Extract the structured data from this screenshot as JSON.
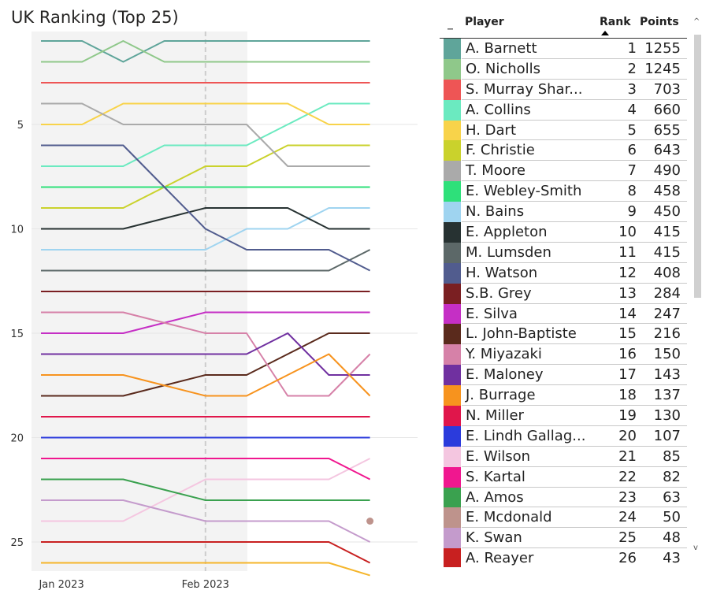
{
  "title": "UK Ranking (Top 25)",
  "chart_data": {
    "type": "line",
    "x": [
      "t1",
      "t2",
      "t3",
      "t4",
      "t5",
      "t6",
      "t7",
      "t8",
      "t9"
    ],
    "x_tick_labels": [
      {
        "label": "Jan 2023",
        "at": 0.5
      },
      {
        "label": "Feb 2023",
        "at": 4
      }
    ],
    "y_ticks": [
      5,
      10,
      15,
      20,
      25
    ],
    "ylim": [
      0.2,
      26.5
    ],
    "y_inverted": true,
    "divider_at": 4,
    "series": [
      {
        "name": "A. Barnett",
        "color": "#5fa59a",
        "values": [
          1,
          1,
          2,
          1,
          1,
          1,
          1,
          1,
          1
        ]
      },
      {
        "name": "O. Nicholls",
        "color": "#8fc88a",
        "values": [
          2,
          2,
          1,
          2,
          2,
          2,
          2,
          2,
          2
        ]
      },
      {
        "name": "S. Murray Sharan",
        "color": "#ee5555",
        "values": [
          3,
          3,
          3,
          3,
          3,
          3,
          3,
          3,
          3
        ]
      },
      {
        "name": "A. Collins",
        "color": "#6beac0",
        "values": [
          7,
          7,
          7,
          6,
          6,
          6,
          5,
          4,
          4
        ]
      },
      {
        "name": "H. Dart",
        "color": "#f8d34a",
        "values": [
          5,
          5,
          4,
          4,
          4,
          4,
          4,
          5,
          5
        ]
      },
      {
        "name": "F. Christie",
        "color": "#cad22c",
        "values": [
          9,
          9,
          9,
          8,
          7,
          7,
          6,
          6,
          6
        ]
      },
      {
        "name": "T. Moore",
        "color": "#aaaaaa",
        "values": [
          4,
          4,
          5,
          5,
          5,
          5,
          7,
          7,
          7
        ]
      },
      {
        "name": "E. Webley-Smith",
        "color": "#2ee07a",
        "values": [
          8,
          8,
          8,
          8,
          8,
          8,
          8,
          8,
          8
        ]
      },
      {
        "name": "N. Bains",
        "color": "#9fd4f0",
        "values": [
          11,
          11,
          11,
          11,
          11,
          10,
          10,
          9,
          9
        ]
      },
      {
        "name": "E. Appleton",
        "color": "#273232",
        "values": [
          10,
          10,
          10,
          9.5,
          9,
          9,
          9,
          10,
          10
        ]
      },
      {
        "name": "M. Lumsden",
        "color": "#5c6868",
        "values": [
          12,
          12,
          12,
          12,
          12,
          12,
          12,
          12,
          11
        ]
      },
      {
        "name": "H. Watson",
        "color": "#515c8e",
        "values": [
          6,
          6,
          6,
          8,
          10,
          11,
          11,
          11,
          12
        ]
      },
      {
        "name": "S.B. Grey",
        "color": "#7a1f22",
        "values": [
          13,
          13,
          13,
          13,
          13,
          13,
          13,
          13,
          13
        ]
      },
      {
        "name": "E. Silva",
        "color": "#c52fc5",
        "values": [
          15,
          15,
          15,
          14.5,
          14,
          14,
          14,
          14,
          14
        ]
      },
      {
        "name": "L. John-Baptiste",
        "color": "#5a2a1c",
        "values": [
          18,
          18,
          18,
          17.5,
          17,
          17,
          16,
          15,
          15
        ]
      },
      {
        "name": "Y. Miyazaki",
        "color": "#d681a8",
        "values": [
          14,
          14,
          14,
          14.5,
          15,
          15,
          18,
          18,
          16
        ]
      },
      {
        "name": "E. Maloney",
        "color": "#7030a0",
        "values": [
          16,
          16,
          16,
          16,
          16,
          16,
          15,
          17,
          17
        ]
      },
      {
        "name": "J. Burrage",
        "color": "#f7931e",
        "values": [
          17,
          17,
          17,
          17.5,
          18,
          18,
          17,
          16,
          18
        ]
      },
      {
        "name": "N. Miller",
        "color": "#e0164b",
        "values": [
          19,
          19,
          19,
          19,
          19,
          19,
          19,
          19,
          19
        ]
      },
      {
        "name": "E. Lindh Gallagher",
        "color": "#2b3bdc",
        "values": [
          20,
          20,
          20,
          20,
          20,
          20,
          20,
          20,
          20
        ]
      },
      {
        "name": "E. Wilson",
        "color": "#f4c6e0",
        "values": [
          24,
          24,
          24,
          23,
          22,
          22,
          22,
          22,
          21
        ]
      },
      {
        "name": "S. Kartal",
        "color": "#f0178f",
        "values": [
          21,
          21,
          21,
          21,
          21,
          21,
          21,
          21,
          22
        ]
      },
      {
        "name": "A. Amos",
        "color": "#3aa14f",
        "values": [
          22,
          22,
          22,
          22.5,
          23,
          23,
          23,
          23,
          23
        ]
      },
      {
        "name": "E. Mcdonald",
        "color": "#be938c",
        "values": [
          null,
          null,
          null,
          null,
          null,
          null,
          null,
          null,
          24
        ]
      },
      {
        "name": "K. Swan",
        "color": "#c49bcc",
        "values": [
          23,
          23,
          23,
          23.5,
          24,
          24,
          24,
          24,
          25
        ]
      },
      {
        "name": "A. Reayer",
        "color": "#c82020",
        "values": [
          25,
          25,
          25,
          25,
          25,
          25,
          25,
          25,
          26
        ]
      },
      {
        "name": "",
        "color": "#f5b52a",
        "values": [
          26,
          26,
          26,
          26,
          26,
          26,
          26,
          26,
          26.6
        ]
      }
    ]
  },
  "table": {
    "sort_indicator": "_",
    "headers": {
      "player": "Player",
      "rank": "Rank",
      "points": "Points"
    },
    "rows": [
      {
        "player": "A. Barnett",
        "rank": "1",
        "points": "1255",
        "color": "#5fa59a"
      },
      {
        "player": "O. Nicholls",
        "rank": "2",
        "points": "1245",
        "color": "#8fc88a"
      },
      {
        "player": "S. Murray Shar...",
        "rank": "3",
        "points": "703",
        "color": "#ee5555"
      },
      {
        "player": "A. Collins",
        "rank": "4",
        "points": "660",
        "color": "#6beac0"
      },
      {
        "player": "H. Dart",
        "rank": "5",
        "points": "655",
        "color": "#f8d34a"
      },
      {
        "player": "F. Christie",
        "rank": "6",
        "points": "643",
        "color": "#cad22c"
      },
      {
        "player": "T. Moore",
        "rank": "7",
        "points": "490",
        "color": "#aaaaaa"
      },
      {
        "player": "E. Webley-Smith",
        "rank": "8",
        "points": "458",
        "color": "#2ee07a"
      },
      {
        "player": "N. Bains",
        "rank": "9",
        "points": "450",
        "color": "#9fd4f0"
      },
      {
        "player": "E. Appleton",
        "rank": "10",
        "points": "415",
        "color": "#273232"
      },
      {
        "player": "M. Lumsden",
        "rank": "11",
        "points": "415",
        "color": "#5c6868"
      },
      {
        "player": "H. Watson",
        "rank": "12",
        "points": "408",
        "color": "#515c8e"
      },
      {
        "player": "S.B. Grey",
        "rank": "13",
        "points": "284",
        "color": "#7a1f22"
      },
      {
        "player": "E. Silva",
        "rank": "14",
        "points": "247",
        "color": "#c52fc5"
      },
      {
        "player": "L. John-Baptiste",
        "rank": "15",
        "points": "216",
        "color": "#5a2a1c"
      },
      {
        "player": "Y. Miyazaki",
        "rank": "16",
        "points": "150",
        "color": "#d681a8"
      },
      {
        "player": "E. Maloney",
        "rank": "17",
        "points": "143",
        "color": "#7030a0"
      },
      {
        "player": "J. Burrage",
        "rank": "18",
        "points": "137",
        "color": "#f7931e"
      },
      {
        "player": "N. Miller",
        "rank": "19",
        "points": "130",
        "color": "#e0164b"
      },
      {
        "player": "E. Lindh Gallag...",
        "rank": "20",
        "points": "107",
        "color": "#2b3bdc"
      },
      {
        "player": "E. Wilson",
        "rank": "21",
        "points": "85",
        "color": "#f4c6e0"
      },
      {
        "player": "S. Kartal",
        "rank": "22",
        "points": "82",
        "color": "#f0178f"
      },
      {
        "player": "A. Amos",
        "rank": "23",
        "points": "63",
        "color": "#3aa14f"
      },
      {
        "player": "E. Mcdonald",
        "rank": "24",
        "points": "50",
        "color": "#be938c"
      },
      {
        "player": "K. Swan",
        "rank": "25",
        "points": "48",
        "color": "#c49bcc"
      },
      {
        "player": "A. Reayer",
        "rank": "26",
        "points": "43",
        "color": "#c82020"
      }
    ]
  },
  "scrollbar": {
    "up_icon": "chevron-up-icon",
    "down_icon": "chevron-down-icon"
  }
}
